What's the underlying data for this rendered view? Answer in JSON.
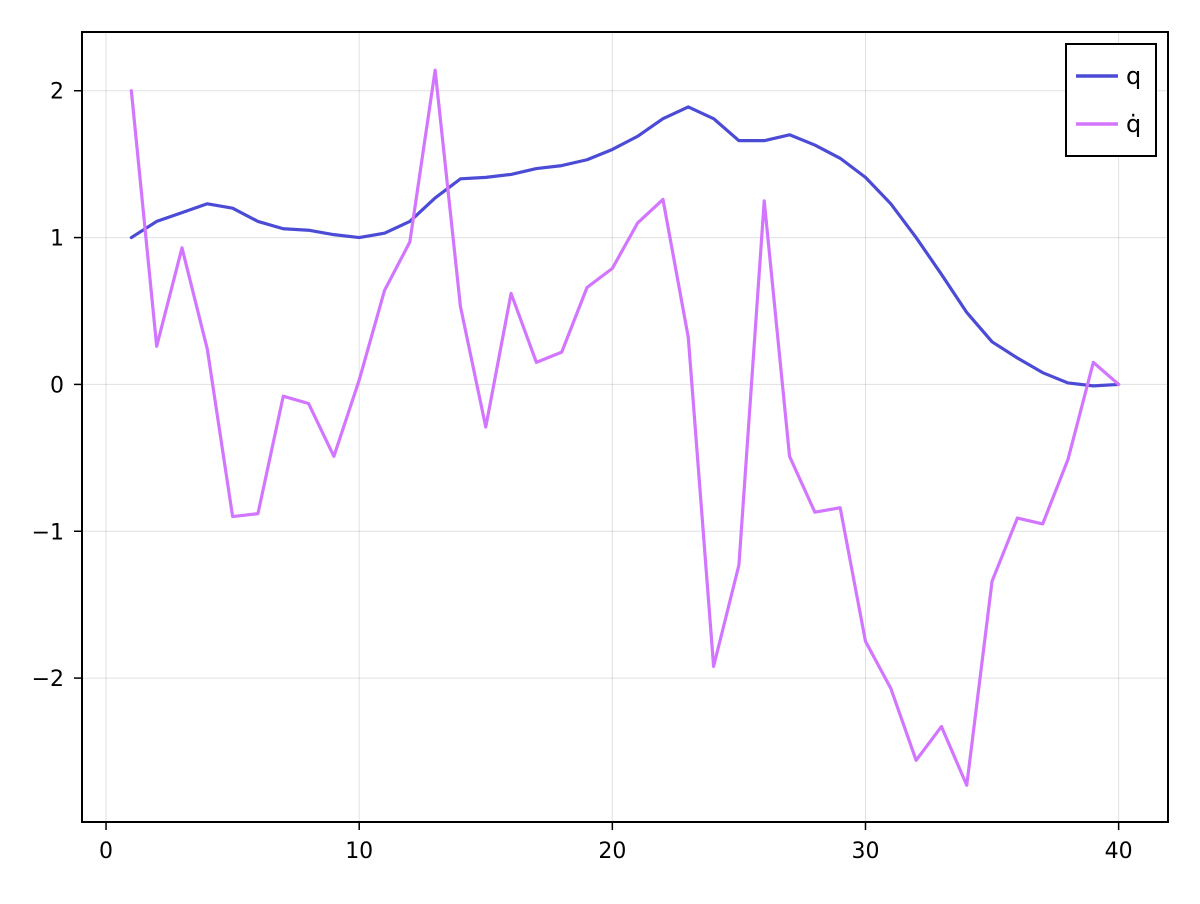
{
  "chart_data": {
    "type": "line",
    "title": "",
    "xlabel": "",
    "ylabel": "",
    "xlim": [
      -0.95,
      41.95
    ],
    "ylim": [
      -2.98,
      2.4
    ],
    "xticks": [
      0,
      10,
      20,
      30,
      40
    ],
    "xtick_labels": [
      "0",
      "10",
      "20",
      "30",
      "40"
    ],
    "yticks": [
      -2,
      -1,
      0,
      1,
      2
    ],
    "ytick_labels": [
      "−2",
      "−1",
      "0",
      "1",
      "2"
    ],
    "grid": true,
    "legend_position": "top-right",
    "x": [
      1,
      2,
      3,
      4,
      5,
      6,
      7,
      8,
      9,
      10,
      11,
      12,
      13,
      14,
      15,
      16,
      17,
      18,
      19,
      20,
      21,
      22,
      23,
      24,
      25,
      26,
      27,
      28,
      29,
      30,
      31,
      32,
      33,
      34,
      35,
      36,
      37,
      38,
      39,
      40
    ],
    "series": [
      {
        "name": "q",
        "color": "#4b4bd6",
        "values": [
          1.0,
          1.11,
          1.17,
          1.23,
          1.2,
          1.11,
          1.06,
          1.05,
          1.02,
          1.0,
          1.03,
          1.11,
          1.27,
          1.4,
          1.41,
          1.43,
          1.47,
          1.49,
          1.53,
          1.6,
          1.69,
          1.81,
          1.89,
          1.81,
          1.66,
          1.66,
          1.7,
          1.63,
          1.54,
          1.41,
          1.23,
          1.0,
          0.75,
          0.49,
          0.29,
          0.18,
          0.08,
          0.01,
          -0.01,
          0.0
        ]
      },
      {
        "name": "q̇",
        "color": "#d376ff",
        "values": [
          2.0,
          0.26,
          0.93,
          0.24,
          -0.9,
          -0.88,
          -0.08,
          -0.13,
          -0.49,
          0.03,
          0.64,
          0.97,
          2.14,
          0.53,
          -0.29,
          0.62,
          0.15,
          0.22,
          0.66,
          0.79,
          1.1,
          1.26,
          0.32,
          -1.92,
          -1.23,
          1.25,
          -0.49,
          -0.87,
          -0.84,
          -1.75,
          -2.07,
          -2.56,
          -2.33,
          -2.73,
          -1.34,
          -0.91,
          -0.95,
          -0.51,
          0.15,
          0.0
        ]
      }
    ]
  }
}
